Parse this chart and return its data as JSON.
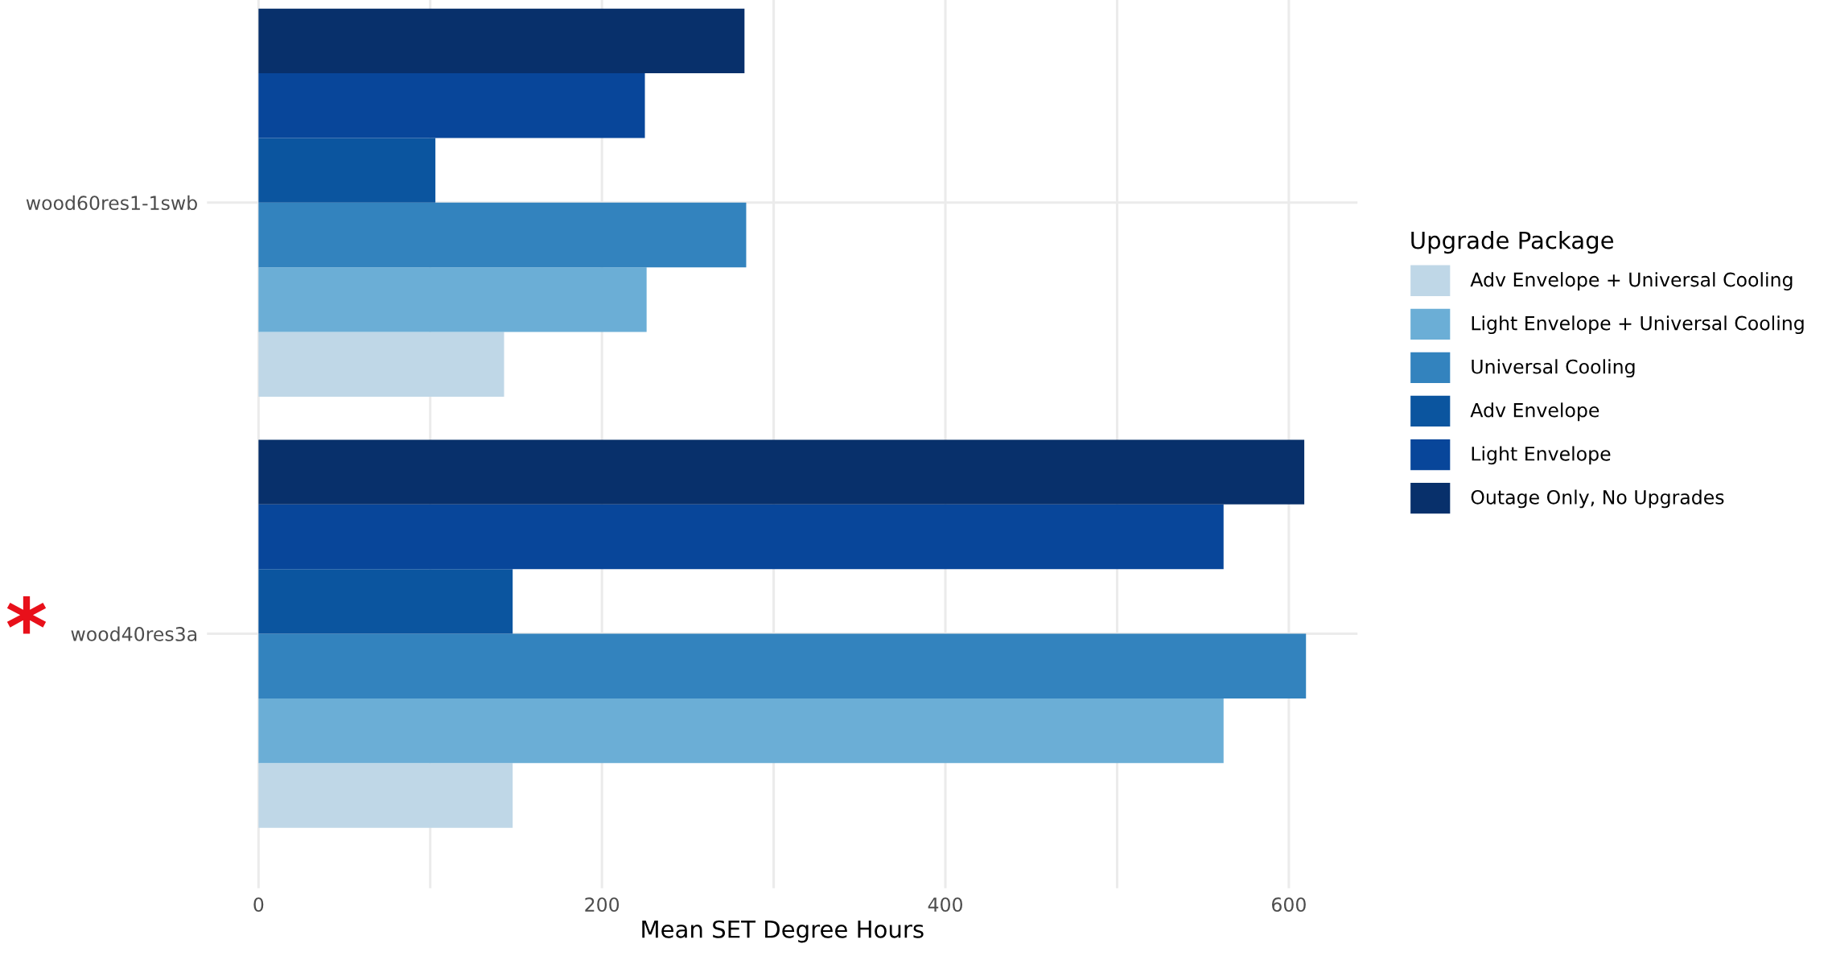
{
  "chart_data": {
    "type": "bar",
    "orientation": "horizontal",
    "xlabel": "Mean SET Degree Hours",
    "legend_title": "Upgrade Package",
    "legend": "right",
    "grid": true,
    "categories": [
      "wood60res1-1swb",
      "wood40res3a"
    ],
    "series": [
      {
        "name": "Adv Envelope + Universal Cooling",
        "color": "#bfd7e7",
        "values": [
          143,
          148
        ]
      },
      {
        "name": "Light Envelope + Universal Cooling",
        "color": "#6baed6",
        "values": [
          226,
          562
        ]
      },
      {
        "name": "Universal Cooling",
        "color": "#3383be",
        "values": [
          284,
          610
        ]
      },
      {
        "name": "Adv Envelope",
        "color": "#0b559f",
        "values": [
          103,
          148
        ]
      },
      {
        "name": "Light Envelope",
        "color": "#08469a",
        "values": [
          225,
          562
        ]
      },
      {
        "name": "Outage Only, No Upgrades",
        "color": "#08306b",
        "values": [
          283,
          609
        ]
      }
    ],
    "xlim": [
      -30,
      640
    ],
    "xticks": [
      0,
      {
        "value": 100,
        "label": null
      },
      200,
      {
        "value": 300,
        "label": null
      },
      400,
      {
        "value": 500,
        "label": null
      },
      600
    ],
    "annotations": [
      "*"
    ]
  }
}
